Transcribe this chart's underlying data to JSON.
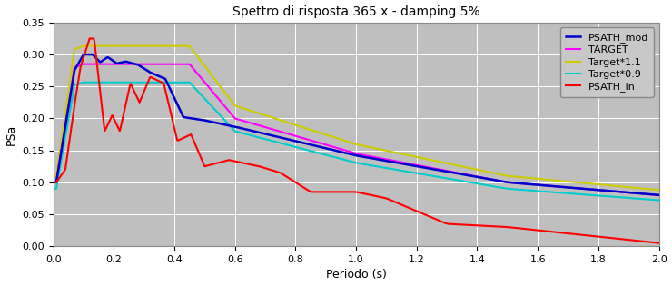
{
  "title": "Spettro di risposta 365 x - damping 5%",
  "xlabel": "Periodo (s)",
  "ylabel": "PSa",
  "xlim": [
    0,
    2
  ],
  "ylim": [
    0,
    0.35
  ],
  "yticks": [
    0,
    0.05,
    0.1,
    0.15,
    0.2,
    0.25,
    0.3,
    0.35
  ],
  "xticks": [
    0,
    0.2,
    0.4,
    0.6,
    0.8,
    1.0,
    1.2,
    1.4,
    1.6,
    1.8,
    2.0
  ],
  "bg_color": "#BFBFBF",
  "fig_color": "#FFFFFF",
  "legend_labels": [
    "PSATH_mod",
    "TARGET",
    "Target*1.1",
    "Target*0.9",
    "PSATH_in"
  ],
  "legend_colors": [
    "#0000CC",
    "#FF00FF",
    "#CCCC00",
    "#00CCCC",
    "#FF0000"
  ],
  "line_widths": [
    1.8,
    1.5,
    1.5,
    1.5,
    1.5
  ],
  "title_fontsize": 10,
  "axis_fontsize": 9,
  "tick_fontsize": 8,
  "legend_fontsize": 8
}
